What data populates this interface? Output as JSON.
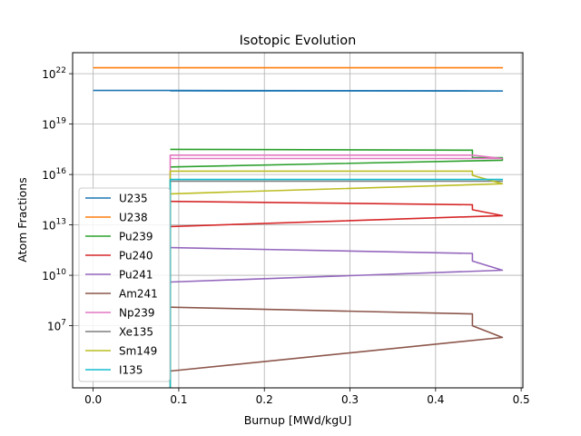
{
  "chart_data": {
    "type": "line",
    "title": "Isotopic Evolution",
    "xlabel": "Burnup [MWd/kgU]",
    "ylabel": "Atom Fractions",
    "xlim": [
      -0.024,
      0.502
    ],
    "ylim_log10": [
      3.3,
      23.25
    ],
    "yscale": "log",
    "grid": true,
    "legend_position": "lower-left",
    "x_ticks": [
      {
        "value": 0.0,
        "label": "0.0"
      },
      {
        "value": 0.1,
        "label": "0.1"
      },
      {
        "value": 0.2,
        "label": "0.2"
      },
      {
        "value": 0.3,
        "label": "0.3"
      },
      {
        "value": 0.4,
        "label": "0.4"
      },
      {
        "value": 0.5,
        "label": "0.5"
      }
    ],
    "y_ticks": [
      {
        "exp": 7,
        "base": "10",
        "sup": "7"
      },
      {
        "exp": 10,
        "base": "10",
        "sup": "10"
      },
      {
        "exp": 13,
        "base": "10",
        "sup": "13"
      },
      {
        "exp": 16,
        "base": "10",
        "sup": "16"
      },
      {
        "exp": 19,
        "base": "10",
        "sup": "19"
      },
      {
        "exp": 22,
        "base": "10",
        "sup": "22"
      }
    ],
    "series": [
      {
        "name": "U235",
        "color": "#1f77b4",
        "x": [
          0.0,
          0.09,
          0.09,
          0.443,
          0.443,
          0.478,
          0.478,
          0.09
        ],
        "y_log10": [
          21.0,
          21.0,
          21.0,
          20.98,
          20.98,
          20.97,
          20.97,
          20.98
        ]
      },
      {
        "name": "U238",
        "color": "#ff7f0e",
        "x": [
          0.0,
          0.09,
          0.09,
          0.443,
          0.443,
          0.478,
          0.478,
          0.09
        ],
        "y_log10": [
          22.35,
          22.35,
          22.35,
          22.35,
          22.35,
          22.35,
          22.35,
          22.35
        ]
      },
      {
        "name": "Pu239",
        "color": "#2ca02c",
        "x": [
          0.09,
          0.443,
          0.443,
          0.478,
          0.478,
          0.09
        ],
        "y_log10": [
          17.5,
          17.45,
          17.0,
          17.0,
          16.85,
          16.45
        ]
      },
      {
        "name": "Pu240",
        "color": "#d62728",
        "x": [
          0.09,
          0.443,
          0.443,
          0.478,
          0.478,
          0.09
        ],
        "y_log10": [
          14.4,
          14.2,
          13.9,
          13.55,
          13.55,
          12.9
        ]
      },
      {
        "name": "Pu241",
        "color": "#9467bd",
        "x": [
          0.09,
          0.443,
          0.443,
          0.478,
          0.478,
          0.09
        ],
        "y_log10": [
          11.65,
          11.3,
          10.85,
          10.3,
          10.3,
          9.6
        ]
      },
      {
        "name": "Am241",
        "color": "#8c564b",
        "x": [
          0.09,
          0.443,
          0.443,
          0.478,
          0.478,
          0.09
        ],
        "y_log10": [
          8.1,
          7.7,
          7.0,
          6.3,
          6.3,
          4.3
        ]
      },
      {
        "name": "Np239",
        "color": "#e377c2",
        "x": [
          0.09,
          0.09,
          0.443,
          0.443,
          0.478,
          0.478,
          0.09
        ],
        "y_log10": [
          3.3,
          17.15,
          17.15,
          17.15,
          16.95,
          16.95,
          16.95
        ]
      },
      {
        "name": "Xe135",
        "color": "#7f7f7f",
        "x": [
          0.09,
          0.09,
          0.443,
          0.443,
          0.478,
          0.478,
          0.09
        ],
        "y_log10": [
          3.3,
          15.6,
          15.6,
          15.6,
          15.6,
          15.6,
          15.6
        ]
      },
      {
        "name": "Sm149",
        "color": "#bcbd22",
        "x": [
          0.09,
          0.09,
          0.443,
          0.443,
          0.478,
          0.478,
          0.09
        ],
        "y_log10": [
          3.3,
          16.2,
          16.2,
          15.95,
          15.45,
          15.45,
          14.85
        ]
      },
      {
        "name": "I135",
        "color": "#17becf",
        "x": [
          0.09,
          0.09,
          0.443,
          0.443,
          0.478,
          0.478,
          0.09
        ],
        "y_log10": [
          3.3,
          15.7,
          15.7,
          15.7,
          15.7,
          15.7,
          15.7
        ]
      }
    ]
  }
}
